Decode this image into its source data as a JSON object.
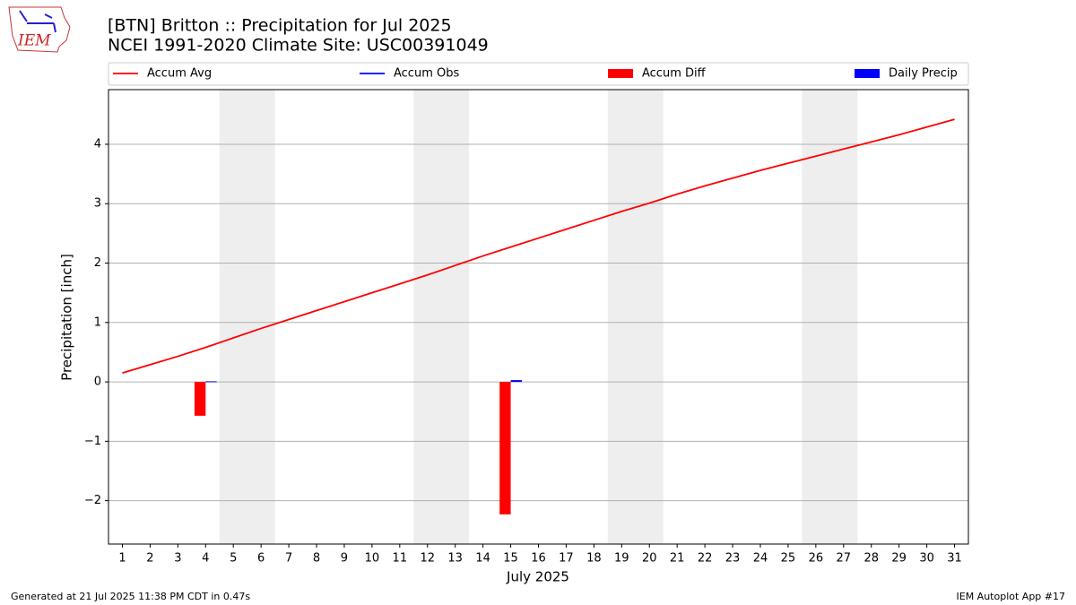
{
  "chart_data": {
    "type": "line",
    "title": "[BTN] Britton :: Precipitation for Jul 2025",
    "subtitle": "NCEI 1991-2020 Climate Site: USC00391049",
    "xlabel": "July 2025",
    "ylabel": "Precipitation [inch]",
    "logo": "IEM",
    "footer_left": "Generated at 21 Jul 2025 11:38 PM CDT in 0.47s",
    "footer_right": "IEM Autoplot App #17",
    "x": [
      1,
      2,
      3,
      4,
      5,
      6,
      7,
      8,
      9,
      10,
      11,
      12,
      13,
      14,
      15,
      16,
      17,
      18,
      19,
      20,
      21,
      22,
      23,
      24,
      25,
      26,
      27,
      28,
      29,
      30,
      31
    ],
    "series": [
      {
        "name": "Accum Avg",
        "color": "#ff0000",
        "kind": "line",
        "values": [
          0.15,
          0.29,
          0.43,
          0.58,
          0.74,
          0.9,
          1.05,
          1.2,
          1.35,
          1.5,
          1.65,
          1.8,
          1.96,
          2.12,
          2.27,
          2.42,
          2.57,
          2.72,
          2.87,
          3.01,
          3.16,
          3.3,
          3.43,
          3.56,
          3.68,
          3.8,
          3.92,
          4.04,
          4.16,
          4.29,
          4.42
        ]
      },
      {
        "name": "Accum Obs",
        "color": "#0000ff",
        "kind": "line",
        "values": [
          null,
          null,
          null,
          0.01,
          null,
          null,
          null,
          null,
          null,
          null,
          null,
          null,
          null,
          null,
          0.04,
          null,
          null,
          null,
          null,
          null,
          null,
          null,
          null,
          null,
          null,
          null,
          null,
          null,
          null,
          null,
          null
        ]
      },
      {
        "name": "Accum Diff",
        "color": "#ff0000",
        "kind": "bar",
        "values": [
          null,
          null,
          null,
          -0.57,
          null,
          null,
          null,
          null,
          null,
          null,
          null,
          null,
          null,
          null,
          -2.23,
          null,
          null,
          null,
          null,
          null,
          null,
          null,
          null,
          null,
          null,
          null,
          null,
          null,
          null,
          null,
          null
        ]
      },
      {
        "name": "Daily Precip",
        "color": "#0000ff",
        "kind": "bar",
        "values": [
          null,
          null,
          null,
          0.01,
          null,
          null,
          null,
          null,
          null,
          null,
          null,
          null,
          null,
          null,
          0.03,
          null,
          null,
          null,
          null,
          null,
          null,
          null,
          null,
          null,
          null,
          null,
          null,
          null,
          null,
          null,
          null
        ]
      }
    ],
    "shaded_ranges": [
      [
        4.5,
        6.5
      ],
      [
        11.5,
        13.5
      ],
      [
        18.5,
        20.5
      ],
      [
        25.5,
        27.5
      ]
    ],
    "xlim": [
      0.5,
      31.5
    ],
    "xticks": [
      1,
      2,
      3,
      4,
      5,
      6,
      7,
      8,
      9,
      10,
      11,
      12,
      13,
      14,
      15,
      16,
      17,
      18,
      19,
      20,
      21,
      22,
      23,
      24,
      25,
      26,
      27,
      28,
      29,
      30,
      31
    ],
    "ylim": [
      -2.73,
      4.92
    ],
    "yticks": [
      {
        "value": -2,
        "label": "−2"
      },
      {
        "value": -1,
        "label": "−1"
      },
      0,
      1,
      2,
      3,
      4
    ],
    "grid": true
  }
}
